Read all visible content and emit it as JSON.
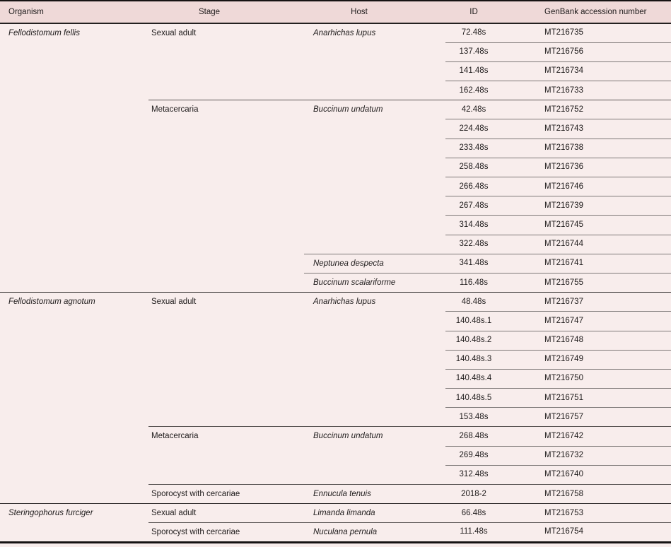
{
  "table": {
    "colors": {
      "header_bg": "#efd9d8",
      "body_bg": "#f8edec",
      "text": "#1e1b1b",
      "outer_rule": "#161313",
      "inner_rule_gray": "#7d7877"
    },
    "headers": [
      "Organism",
      "Stage",
      "Host",
      "ID",
      "GenBank accession number"
    ],
    "groups": [
      {
        "organism": "Fellodistomum fellis",
        "stages": [
          {
            "stage": "Sexual adult",
            "hosts": [
              {
                "host": "Anarhichas lupus",
                "entries": [
                  {
                    "id": "72.48s",
                    "accession": "MT216735"
                  },
                  {
                    "id": "137.48s",
                    "accession": "MT216756"
                  },
                  {
                    "id": "141.48s",
                    "accession": "MT216734"
                  },
                  {
                    "id": "162.48s",
                    "accession": "MT216733"
                  }
                ]
              }
            ]
          },
          {
            "stage": "Metacercaria",
            "hosts": [
              {
                "host": "Buccinum undatum",
                "entries": [
                  {
                    "id": "42.48s",
                    "accession": "MT216752"
                  },
                  {
                    "id": "224.48s",
                    "accession": "MT216743"
                  },
                  {
                    "id": "233.48s",
                    "accession": "MT216738"
                  },
                  {
                    "id": "258.48s",
                    "accession": "MT216736"
                  },
                  {
                    "id": "266.48s",
                    "accession": "MT216746"
                  },
                  {
                    "id": "267.48s",
                    "accession": "MT216739"
                  },
                  {
                    "id": "314.48s",
                    "accession": "MT216745"
                  },
                  {
                    "id": "322.48s",
                    "accession": "MT216744"
                  }
                ]
              },
              {
                "host": "Neptunea despecta",
                "entries": [
                  {
                    "id": "341.48s",
                    "accession": "MT216741"
                  }
                ]
              },
              {
                "host": "Buccinum scalariforme",
                "entries": [
                  {
                    "id": "116.48s",
                    "accession": "MT216755"
                  }
                ]
              }
            ]
          }
        ]
      },
      {
        "organism": "Fellodistomum agnotum",
        "stages": [
          {
            "stage": "Sexual adult",
            "hosts": [
              {
                "host": "Anarhichas lupus",
                "entries": [
                  {
                    "id": "48.48s",
                    "accession": "MT216737"
                  },
                  {
                    "id": "140.48s.1",
                    "accession": "MT216747"
                  },
                  {
                    "id": "140.48s.2",
                    "accession": "MT216748"
                  },
                  {
                    "id": "140.48s.3",
                    "accession": "MT216749"
                  },
                  {
                    "id": "140.48s.4",
                    "accession": "MT216750"
                  },
                  {
                    "id": "140.48s.5",
                    "accession": "MT216751"
                  },
                  {
                    "id": "153.48s",
                    "accession": "MT216757"
                  }
                ]
              }
            ]
          },
          {
            "stage": "Metacercaria",
            "hosts": [
              {
                "host": "Buccinum undatum",
                "entries": [
                  {
                    "id": "268.48s",
                    "accession": "MT216742"
                  },
                  {
                    "id": "269.48s",
                    "accession": "MT216732"
                  },
                  {
                    "id": "312.48s",
                    "accession": "MT216740"
                  }
                ]
              }
            ]
          },
          {
            "stage": "Sporocyst with cercariae",
            "hosts": [
              {
                "host": "Ennucula tenuis",
                "entries": [
                  {
                    "id": "2018-2",
                    "accession": "MT216758"
                  }
                ]
              }
            ]
          }
        ]
      },
      {
        "organism": "Steringophorus furciger",
        "stages": [
          {
            "stage": "Sexual adult",
            "hosts": [
              {
                "host": "Limanda limanda",
                "entries": [
                  {
                    "id": "66.48s",
                    "accession": "MT216753"
                  }
                ]
              }
            ]
          },
          {
            "stage": "Sporocyst with cercariae",
            "hosts": [
              {
                "host": "Nuculana pernula",
                "entries": [
                  {
                    "id": "111.48s",
                    "accession": "MT216754"
                  }
                ]
              }
            ]
          }
        ]
      }
    ]
  }
}
